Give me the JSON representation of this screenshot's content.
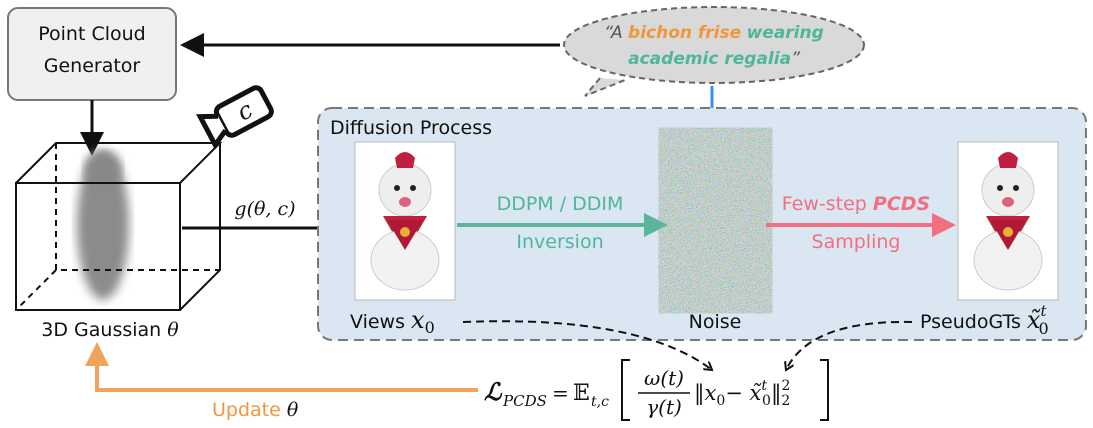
{
  "generator": {
    "line1": "Point Cloud",
    "line2": "Generator"
  },
  "prompt": {
    "open": "“A ",
    "subject": "bichon frise",
    "rest1": "wearing",
    "rest2": "academic regalia",
    "close": "”"
  },
  "camera": {
    "label": "c"
  },
  "gaussian": {
    "label": "3D Gaussian",
    "symbol": "θ"
  },
  "render": {
    "label": "g(θ, c)"
  },
  "diffusion": {
    "title": "Diffusion Process",
    "inversion": {
      "line1": "DDPM / DDIM",
      "line2": "Inversion"
    },
    "sampling": {
      "line1a": "Few-step ",
      "line1b": "PCDS",
      "line2": "Sampling"
    },
    "views": {
      "label": "Views",
      "var": "x",
      "sub": "0"
    },
    "noise": {
      "label": "Noise"
    },
    "pseudo": {
      "label": "PseudoGTs",
      "var": "x̃",
      "sub": "0",
      "sup": "t"
    }
  },
  "loss": {
    "symbol": "ℒ",
    "symbol_sub": "PCDS",
    "equals": "=",
    "expect": "𝔼",
    "expect_sub": "t,c",
    "numerator": "ω(t)",
    "denominator": "γ(t)",
    "norm_open": "‖x",
    "x_sub": "0",
    "minus": "− x̃",
    "xt_sub": "0",
    "xt_sup": "t",
    "norm_close": "‖",
    "norm_sup": "2",
    "norm_sub": "2"
  },
  "update": {
    "label": "Update",
    "symbol": "θ"
  }
}
